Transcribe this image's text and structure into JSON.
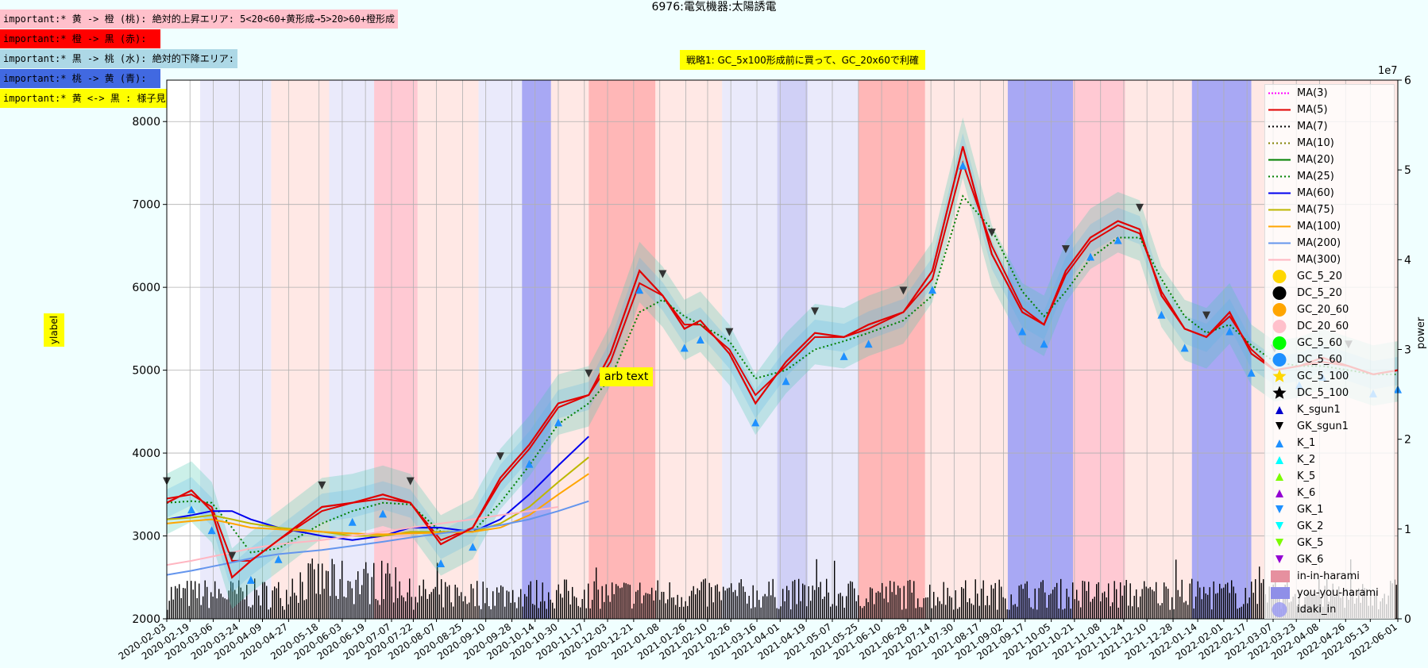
{
  "annotations": [
    {
      "text": "important:* 黄 -> 橙 (桃): 絶対的上昇エリア: 5<20<60+黄形成→5>20>60+橙形成",
      "bg": "#ffc0cb"
    },
    {
      "text": "important:* 橙 -> 黒 (赤):",
      "bg": "#ff0000"
    },
    {
      "text": "important:* 黒 -> 桃 (水): 絶対的下降エリア:",
      "bg": "#add8e6"
    },
    {
      "text": "important:* 桃 -> 黄 (青):",
      "bg": "#4169e1"
    },
    {
      "text": "important:* 黄 <-> 黒 : 様子見:",
      "bg": "#ffff00"
    }
  ],
  "title_text": "6976:電気機器:太陽誘電",
  "strategy_text": "戦略1: GC_5x100形成前に買って、GC_20x60で利確",
  "arb_text": "arb text",
  "chart_data": {
    "type": "line",
    "title": "6976:電気機器:太陽誘電",
    "ylabel": "ylabel",
    "y2label": "power",
    "y2_offset_label": "1e7",
    "ylim": [
      2000,
      8500
    ],
    "y2lim": [
      0,
      6
    ],
    "yticks": [
      2000,
      3000,
      4000,
      5000,
      6000,
      7000,
      8000
    ],
    "y2ticks": [
      0,
      1,
      2,
      3,
      4,
      5,
      6
    ],
    "grid": true,
    "legend_position": "right",
    "x_range": [
      "2020-02-03",
      "2022-06-01"
    ],
    "xtick_labels": [
      "2020-02-03",
      "2020-02-19",
      "2020-03-06",
      "2020-03-24",
      "2020-04-09",
      "2020-04-27",
      "2020-05-18",
      "2020-06-03",
      "2020-06-19",
      "2020-07-07",
      "2020-07-22",
      "2020-08-07",
      "2020-08-25",
      "2020-09-10",
      "2020-09-28",
      "2020-10-14",
      "2020-10-30",
      "2020-11-17",
      "2020-12-03",
      "2020-12-21",
      "2021-01-08",
      "2021-01-26",
      "2021-02-10",
      "2021-02-26",
      "2021-03-16",
      "2021-04-01",
      "2021-04-19",
      "2021-05-07",
      "2021-05-25",
      "2021-06-10",
      "2021-06-28",
      "2021-07-14",
      "2021-07-30",
      "2021-08-17",
      "2021-09-02",
      "2021-09-17",
      "2021-10-05",
      "2021-10-21",
      "2021-11-08",
      "2021-11-24",
      "2021-12-10",
      "2021-12-28",
      "2022-01-14",
      "2022-02-01",
      "2022-02-17",
      "2022-03-07",
      "2022-03-23",
      "2022-04-08",
      "2022-04-26",
      "2022-05-13",
      "2022-06-01"
    ],
    "price_series": {
      "name": "close",
      "x": [
        "2020-02-03",
        "2020-02-20",
        "2020-03-05",
        "2020-03-19",
        "2020-04-01",
        "2020-04-20",
        "2020-05-20",
        "2020-06-10",
        "2020-07-01",
        "2020-07-20",
        "2020-08-10",
        "2020-09-01",
        "2020-09-20",
        "2020-10-10",
        "2020-10-30",
        "2020-11-20",
        "2020-12-05",
        "2020-12-25",
        "2021-01-10",
        "2021-01-25",
        "2021-02-05",
        "2021-02-25",
        "2021-03-15",
        "2021-04-05",
        "2021-04-25",
        "2021-05-15",
        "2021-06-01",
        "2021-06-25",
        "2021-07-15",
        "2021-08-05",
        "2021-08-25",
        "2021-09-15",
        "2021-09-30",
        "2021-10-15",
        "2021-11-01",
        "2021-11-20",
        "2021-12-05",
        "2021-12-20",
        "2022-01-05",
        "2022-01-20",
        "2022-02-05",
        "2022-02-20",
        "2022-03-08",
        "2022-03-25",
        "2022-04-10",
        "2022-04-28",
        "2022-05-15",
        "2022-06-01"
      ],
      "y": [
        3400,
        3550,
        3300,
        2500,
        2700,
        2950,
        3350,
        3400,
        3500,
        3400,
        2900,
        3100,
        3700,
        4100,
        4600,
        4700,
        5200,
        6200,
        5900,
        5500,
        5600,
        5200,
        4600,
        5100,
        5450,
        5400,
        5550,
        5700,
        6200,
        7700,
        6400,
        5700,
        5550,
        6200,
        6600,
        6800,
        6700,
        5900,
        5500,
        5400,
        5700,
        5200,
        5000,
        5050,
        5150,
        5050,
        4950,
        5000
      ]
    },
    "ma_series": [
      {
        "name": "MA(5)",
        "start": "2020-02-03",
        "y": [
          3450,
          3500,
          3350,
          2700,
          2700,
          2950,
          3300,
          3400,
          3450,
          3400,
          2950,
          3100,
          3650,
          4050,
          4550,
          4700,
          5100,
          6050,
          5900,
          5550,
          5550,
          5250,
          4700,
          5050,
          5400,
          5400,
          5500,
          5700,
          6100,
          7500,
          6500,
          5750,
          5550,
          6150,
          6550,
          6750,
          6650,
          5950,
          5500,
          5400,
          5650,
          5250,
          5000,
          5050,
          5100,
          5050,
          4950,
          5000
        ]
      },
      {
        "name": "MA(25)",
        "start": "2020-02-03",
        "y": [
          3400,
          3420,
          3400,
          3100,
          2800,
          2850,
          3150,
          3300,
          3400,
          3380,
          3050,
          3050,
          3400,
          3850,
          4350,
          4600,
          4900,
          5700,
          5850,
          5650,
          5550,
          5350,
          4900,
          5000,
          5250,
          5350,
          5450,
          5600,
          5900,
          7100,
          6700,
          5950,
          5650,
          5950,
          6350,
          6600,
          6600,
          6100,
          5650,
          5450,
          5550,
          5300,
          5100,
          5050,
          5050,
          5000,
          4950,
          4950
        ]
      },
      {
        "name": "MA(60)",
        "start": "2020-02-03",
        "y": [
          3200,
          3250,
          3300,
          3300,
          3200,
          3100,
          3000,
          2950,
          3000,
          3100,
          3100,
          3050,
          3200,
          3500,
          3850,
          4200
        ]
      },
      {
        "name": "MA(75)",
        "start": "2020-02-03",
        "y": [
          3200,
          3220,
          3250,
          3200,
          3150,
          3100,
          3050,
          3000,
          3000,
          3050,
          3050,
          3050,
          3150,
          3350,
          3650,
          3950
        ]
      },
      {
        "name": "MA(100)",
        "start": "2020-02-03",
        "y": [
          3150,
          3180,
          3200,
          3150,
          3100,
          3080,
          3050,
          3030,
          3020,
          3030,
          3040,
          3050,
          3100,
          3250,
          3500,
          3750
        ]
      },
      {
        "name": "MA(200)",
        "start": "2020-02-03",
        "y": [
          2530,
          2580,
          2630,
          2680,
          2730,
          2780,
          2830,
          2880,
          2930,
          2980,
          3030,
          3080,
          3130,
          3200,
          3300,
          3420
        ]
      },
      {
        "name": "MA(300)",
        "start": "2020-02-03",
        "y": [
          2650,
          2700,
          2750,
          2800,
          2850,
          2900,
          2950,
          3000,
          3050,
          3100,
          3150,
          3200,
          3250,
          3300,
          3350
        ]
      }
    ],
    "volume": {
      "unit": "1e7",
      "typical_range": [
        0.1,
        0.45
      ],
      "peak": 0.75
    },
    "background_bands": [
      {
        "from": "2020-02-26",
        "to": "2020-04-15",
        "color": "#e6e6fa"
      },
      {
        "from": "2020-04-15",
        "to": "2020-05-25",
        "color": "#ffe4e1"
      },
      {
        "from": "2020-05-25",
        "to": "2020-06-25",
        "color": "#e6e6fa"
      },
      {
        "from": "2020-06-25",
        "to": "2020-07-25",
        "color": "#ffc0cb"
      },
      {
        "from": "2020-07-25",
        "to": "2020-09-05",
        "color": "#ffe4e1"
      },
      {
        "from": "2020-09-05",
        "to": "2020-10-05",
        "color": "#e6e6fa"
      },
      {
        "from": "2020-10-05",
        "to": "2020-10-25",
        "color": "#9999f2"
      },
      {
        "from": "2020-10-25",
        "to": "2020-11-20",
        "color": "#ffe4e1"
      },
      {
        "from": "2020-11-20",
        "to": "2021-01-05",
        "color": "#ffaaaa"
      },
      {
        "from": "2021-01-05",
        "to": "2021-02-20",
        "color": "#ffe4e1"
      },
      {
        "from": "2021-02-20",
        "to": "2021-03-30",
        "color": "#e6e6fa"
      },
      {
        "from": "2021-03-30",
        "to": "2021-04-20",
        "color": "#c8c8f5"
      },
      {
        "from": "2021-04-20",
        "to": "2021-05-25",
        "color": "#e6e6fa"
      },
      {
        "from": "2021-05-25",
        "to": "2021-07-10",
        "color": "#ffaaaa"
      },
      {
        "from": "2021-07-10",
        "to": "2021-09-05",
        "color": "#ffe4e1"
      },
      {
        "from": "2021-09-05",
        "to": "2021-10-20",
        "color": "#9999f2"
      },
      {
        "from": "2021-10-20",
        "to": "2021-11-25",
        "color": "#ffc0cb"
      },
      {
        "from": "2021-11-25",
        "to": "2022-01-10",
        "color": "#ffe4e1"
      },
      {
        "from": "2022-01-10",
        "to": "2022-02-20",
        "color": "#9999f2"
      },
      {
        "from": "2022-02-20",
        "to": "2022-06-01",
        "color": "#ffe4e1"
      }
    ],
    "legend": [
      {
        "label": "MA(3)",
        "kind": "line",
        "color": "#ff00ff",
        "dash": "2,2"
      },
      {
        "label": "MA(5)",
        "kind": "line",
        "color": "#e00000",
        "dash": ""
      },
      {
        "label": "MA(7)",
        "kind": "line",
        "color": "#000000",
        "dash": "2,3"
      },
      {
        "label": "MA(10)",
        "kind": "line",
        "color": "#808000",
        "dash": "2,3"
      },
      {
        "label": "MA(20)",
        "kind": "line",
        "color": "#008000",
        "dash": ""
      },
      {
        "label": "MA(25)",
        "kind": "line",
        "color": "#008000",
        "dash": "2,3"
      },
      {
        "label": "MA(60)",
        "kind": "line",
        "color": "#0000ee",
        "dash": ""
      },
      {
        "label": "MA(75)",
        "kind": "line",
        "color": "#bdb700",
        "dash": ""
      },
      {
        "label": "MA(100)",
        "kind": "line",
        "color": "#ffa500",
        "dash": ""
      },
      {
        "label": "MA(200)",
        "kind": "line",
        "color": "#6495ed",
        "dash": ""
      },
      {
        "label": "MA(300)",
        "kind": "line",
        "color": "#ffb6c1",
        "dash": ""
      },
      {
        "label": "GC_5_20",
        "kind": "circle",
        "color": "#ffd700"
      },
      {
        "label": "DC_5_20",
        "kind": "circle",
        "color": "#000000"
      },
      {
        "label": "GC_20_60",
        "kind": "circle",
        "color": "#ffa500"
      },
      {
        "label": "DC_20_60",
        "kind": "circle",
        "color": "#ffc0cb"
      },
      {
        "label": "GC_5_60",
        "kind": "circle",
        "color": "#00ff00"
      },
      {
        "label": "DC_5_60",
        "kind": "circle",
        "color": "#1e90ff"
      },
      {
        "label": "GC_5_100",
        "kind": "star",
        "color": "#ffd700"
      },
      {
        "label": "DC_5_100",
        "kind": "star",
        "color": "#000000"
      },
      {
        "label": "K_sgun1",
        "kind": "tri-up",
        "color": "#0000cd"
      },
      {
        "label": "GK_sgun1",
        "kind": "tri-down",
        "color": "#000000"
      },
      {
        "label": "K_1",
        "kind": "tri-up",
        "color": "#1e90ff"
      },
      {
        "label": "K_2",
        "kind": "tri-up",
        "color": "#00ffff"
      },
      {
        "label": "K_5",
        "kind": "tri-up",
        "color": "#7cfc00"
      },
      {
        "label": "K_6",
        "kind": "tri-up",
        "color": "#9400d3"
      },
      {
        "label": "GK_1",
        "kind": "tri-down",
        "color": "#1e90ff"
      },
      {
        "label": "GK_2",
        "kind": "tri-down",
        "color": "#00ffff"
      },
      {
        "label": "GK_5",
        "kind": "tri-down",
        "color": "#7cfc00"
      },
      {
        "label": "GK_6",
        "kind": "tri-down",
        "color": "#9400d3"
      },
      {
        "label": "in-in-harami",
        "kind": "square",
        "color": "#e6909f"
      },
      {
        "label": "you-you-harami",
        "kind": "square",
        "color": "#8f8fe8"
      },
      {
        "label": "idaki_in",
        "kind": "circle-lg",
        "color": "#9999f2"
      }
    ]
  }
}
